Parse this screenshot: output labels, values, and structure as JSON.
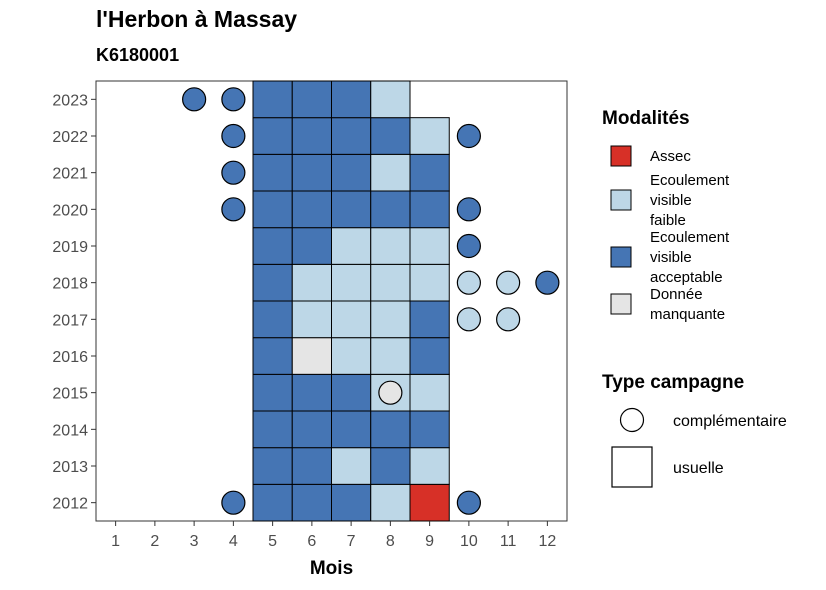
{
  "chart_data": {
    "type": "heatmap",
    "title": "l'Herbon à Massay",
    "subtitle": "K6180001",
    "xlabel": "Mois",
    "ylabel": "",
    "x_ticks": [
      "1",
      "2",
      "3",
      "4",
      "5",
      "6",
      "7",
      "8",
      "9",
      "10",
      "11",
      "12"
    ],
    "y_ticks": [
      "2012",
      "2013",
      "2014",
      "2015",
      "2016",
      "2017",
      "2018",
      "2019",
      "2020",
      "2021",
      "2022",
      "2023"
    ],
    "xlim": [
      0.5,
      12.5
    ],
    "ylim": [
      2011.5,
      2023.5
    ],
    "colors": {
      "assec": "#d73027",
      "faible": "#bdd7e7",
      "acceptable": "#4575b4",
      "manquante": "#e5e5e5"
    },
    "legend_modalites": {
      "title": "Modalités",
      "items": [
        {
          "key": "assec",
          "lines": [
            "Assec"
          ]
        },
        {
          "key": "faible",
          "lines": [
            "Ecoulement",
            "visible",
            "faible"
          ]
        },
        {
          "key": "acceptable",
          "lines": [
            "Ecoulement",
            "visible",
            "acceptable"
          ]
        },
        {
          "key": "manquante",
          "lines": [
            "Donnée",
            "manquante"
          ]
        }
      ]
    },
    "legend_type": {
      "title": "Type campagne",
      "items": [
        {
          "shape": "circle",
          "label": "complémentaire"
        },
        {
          "shape": "square",
          "label": "usuelle"
        }
      ]
    },
    "usuelle": [
      {
        "year": 2012,
        "months": [
          "acceptable",
          "acceptable",
          "acceptable",
          "faible",
          "assec"
        ]
      },
      {
        "year": 2013,
        "months": [
          "acceptable",
          "acceptable",
          "faible",
          "acceptable",
          "faible"
        ]
      },
      {
        "year": 2014,
        "months": [
          "acceptable",
          "acceptable",
          "acceptable",
          "acceptable",
          "acceptable"
        ]
      },
      {
        "year": 2015,
        "months": [
          "acceptable",
          "acceptable",
          "acceptable",
          "faible",
          "faible"
        ]
      },
      {
        "year": 2016,
        "months": [
          "acceptable",
          "manquante",
          "faible",
          "faible",
          "acceptable"
        ]
      },
      {
        "year": 2017,
        "months": [
          "acceptable",
          "faible",
          "faible",
          "faible",
          "acceptable"
        ]
      },
      {
        "year": 2018,
        "months": [
          "acceptable",
          "faible",
          "faible",
          "faible",
          "faible"
        ]
      },
      {
        "year": 2019,
        "months": [
          "acceptable",
          "acceptable",
          "faible",
          "faible",
          "faible"
        ]
      },
      {
        "year": 2020,
        "months": [
          "acceptable",
          "acceptable",
          "acceptable",
          "acceptable",
          "acceptable"
        ]
      },
      {
        "year": 2021,
        "months": [
          "acceptable",
          "acceptable",
          "acceptable",
          "faible",
          "acceptable"
        ]
      },
      {
        "year": 2022,
        "months": [
          "acceptable",
          "acceptable",
          "acceptable",
          "acceptable",
          "faible"
        ]
      },
      {
        "year": 2023,
        "months": [
          "acceptable",
          "acceptable",
          "acceptable",
          "faible"
        ]
      }
    ],
    "usuelle_start_month": 5,
    "complementaire": [
      {
        "year": 2023,
        "month": 3,
        "key": "acceptable"
      },
      {
        "year": 2023,
        "month": 4,
        "key": "acceptable"
      },
      {
        "year": 2022,
        "month": 4,
        "key": "acceptable"
      },
      {
        "year": 2022,
        "month": 10,
        "key": "acceptable"
      },
      {
        "year": 2021,
        "month": 4,
        "key": "acceptable"
      },
      {
        "year": 2020,
        "month": 4,
        "key": "acceptable"
      },
      {
        "year": 2020,
        "month": 10,
        "key": "acceptable"
      },
      {
        "year": 2019,
        "month": 10,
        "key": "acceptable"
      },
      {
        "year": 2018,
        "month": 10,
        "key": "faible"
      },
      {
        "year": 2018,
        "month": 11,
        "key": "faible"
      },
      {
        "year": 2018,
        "month": 12,
        "key": "acceptable"
      },
      {
        "year": 2017,
        "month": 10,
        "key": "faible"
      },
      {
        "year": 2017,
        "month": 11,
        "key": "faible"
      },
      {
        "year": 2015,
        "month": 8,
        "key": "manquante"
      },
      {
        "year": 2012,
        "month": 4,
        "key": "acceptable"
      },
      {
        "year": 2012,
        "month": 10,
        "key": "acceptable"
      }
    ]
  }
}
